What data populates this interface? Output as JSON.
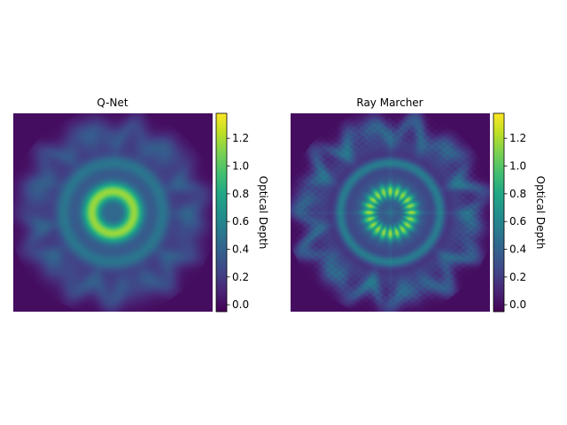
{
  "chart_data": [
    {
      "type": "heatmap",
      "title": "Q-Net",
      "colorbar": {
        "label": "Optical Depth",
        "range": [
          -0.05,
          1.38
        ],
        "ticks": [
          "0.0",
          "0.2",
          "0.4",
          "0.6",
          "0.8",
          "1.0",
          "1.2"
        ],
        "tick_values": [
          0.0,
          0.2,
          0.4,
          0.6,
          0.8,
          1.0,
          1.2
        ],
        "colormap": "viridis"
      },
      "axes_visible": false,
      "field": {
        "background": 0.0,
        "outer_ring": {
          "radius": 0.82,
          "peak": 0.32
        },
        "inner_ring": {
          "radius": 0.5,
          "peak": 0.4
        },
        "core": {
          "radius": 0.21,
          "peak": 1.36,
          "center_value": 0.78
        },
        "texture": "smooth blobs"
      }
    },
    {
      "type": "heatmap",
      "title": "Ray Marcher",
      "colorbar": {
        "label": "Optical Depth",
        "range": [
          -0.05,
          1.38
        ],
        "ticks": [
          "0.0",
          "0.2",
          "0.4",
          "0.6",
          "0.8",
          "1.0",
          "1.2"
        ],
        "tick_values": [
          0.0,
          0.2,
          0.4,
          0.6,
          0.8,
          1.0,
          1.2
        ],
        "colormap": "viridis"
      },
      "axes_visible": false,
      "field": {
        "background": 0.0,
        "outer_ring": {
          "radius": 0.85,
          "peak": 0.38
        },
        "inner_ring": {
          "radius": 0.5,
          "peak": 0.45
        },
        "core": {
          "radius": 0.21,
          "peak": 1.38,
          "center_value": 0.75
        },
        "texture": "sharp cloud lobes with cross artifact"
      }
    }
  ]
}
